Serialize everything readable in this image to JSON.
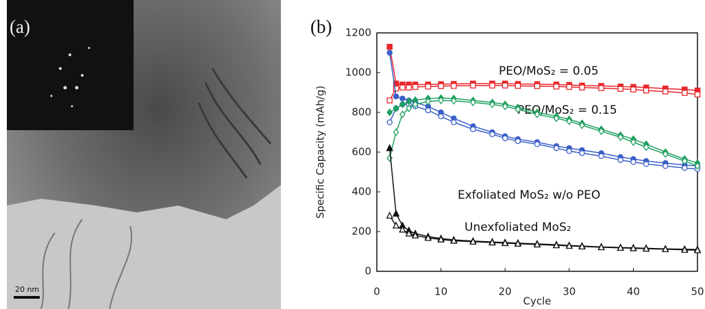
{
  "panel_a": {
    "label": "(a)",
    "scale_bar": "20 nm"
  },
  "chart_data": {
    "type": "line",
    "label": "(b)",
    "x_label": "Cycle",
    "y_label": "Specific Capacity (mAh/g)",
    "annotations": [
      "PEO/MoS₂ = 0.05",
      "PEO/MoS₂ = 0.15",
      "Exfoliated MoS₂ w/o PEO",
      "Unexfoliated MoS₂"
    ],
    "xlim": [
      0,
      50
    ],
    "xticks": [
      0,
      10,
      20,
      30,
      40,
      50
    ],
    "ylim": [
      0,
      1200
    ],
    "yticks": [
      0,
      200,
      400,
      600,
      800,
      1000,
      1200
    ],
    "x": [
      2,
      3,
      4,
      5,
      6,
      8,
      10,
      12,
      15,
      18,
      20,
      22,
      25,
      28,
      30,
      32,
      35,
      38,
      40,
      42,
      45,
      48,
      50
    ],
    "series": [
      {
        "color": "#e8262b",
        "marker": "square",
        "filled": true,
        "values": [
          1130,
          945,
          940,
          940,
          940,
          940,
          942,
          943,
          945,
          945,
          945,
          943,
          942,
          940,
          938,
          935,
          933,
          930,
          928,
          925,
          920,
          915,
          910
        ]
      },
      {
        "color": "#e8262b",
        "marker": "square",
        "filled": false,
        "values": [
          860,
          920,
          925,
          925,
          928,
          930,
          932,
          933,
          935,
          935,
          935,
          933,
          932,
          930,
          928,
          925,
          922,
          918,
          915,
          910,
          905,
          898,
          890
        ]
      },
      {
        "color": "#3a5fc8",
        "marker": "circle",
        "filled": true,
        "values": [
          1100,
          880,
          870,
          860,
          850,
          830,
          800,
          770,
          730,
          700,
          680,
          665,
          650,
          630,
          620,
          610,
          595,
          575,
          565,
          555,
          545,
          535,
          530
        ]
      },
      {
        "color": "#3a5fc8",
        "marker": "circle",
        "filled": false,
        "values": [
          750,
          820,
          840,
          840,
          830,
          810,
          780,
          750,
          715,
          690,
          670,
          655,
          640,
          620,
          605,
          595,
          580,
          560,
          550,
          540,
          530,
          520,
          515
        ]
      },
      {
        "color": "#1fa060",
        "marker": "diamond",
        "filled": true,
        "values": [
          800,
          820,
          840,
          855,
          862,
          870,
          872,
          870,
          860,
          850,
          840,
          825,
          800,
          780,
          765,
          745,
          715,
          685,
          665,
          640,
          600,
          565,
          545
        ]
      },
      {
        "color": "#1fa060",
        "marker": "diamond",
        "filled": false,
        "values": [
          570,
          700,
          790,
          820,
          840,
          855,
          860,
          858,
          850,
          840,
          830,
          815,
          790,
          770,
          755,
          735,
          705,
          675,
          650,
          625,
          590,
          555,
          530
        ]
      },
      {
        "color": "#111111",
        "marker": "triangle",
        "filled": true,
        "values": [
          620,
          290,
          230,
          205,
          190,
          175,
          165,
          158,
          152,
          148,
          145,
          142,
          138,
          134,
          130,
          127,
          123,
          120,
          118,
          116,
          113,
          111,
          110
        ]
      },
      {
        "color": "#111111",
        "marker": "triangle",
        "filled": false,
        "values": [
          280,
          230,
          210,
          190,
          180,
          168,
          160,
          154,
          149,
          145,
          142,
          139,
          135,
          131,
          128,
          125,
          121,
          118,
          116,
          114,
          111,
          108,
          106
        ]
      }
    ]
  }
}
